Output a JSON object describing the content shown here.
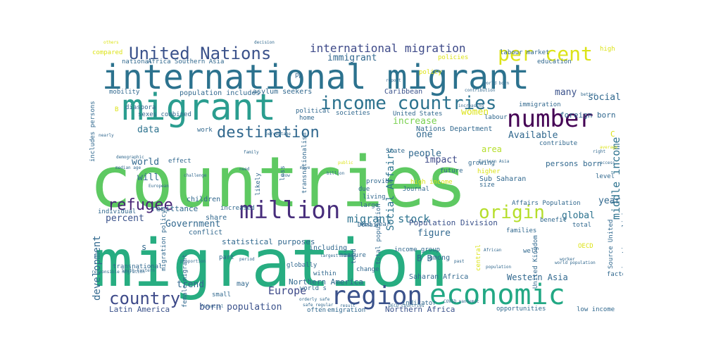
{
  "palette": {
    "dark_purple": "#440154",
    "indigo": "#3b528b",
    "teal": "#21918c",
    "blue_teal": "#2c728e",
    "green": "#5ec962",
    "green_teal": "#27ad81",
    "yellow": "#dce318",
    "light_green": "#7ad151"
  },
  "words": [
    {
      "text": "countries",
      "size": 99,
      "color": "#5ec962",
      "rotate": 0
    },
    {
      "text": "migration",
      "size": 93,
      "color": "#27ad81",
      "rotate": 0
    },
    {
      "text": "international migrant",
      "size": 48,
      "color": "#2c728e",
      "rotate": 0
    },
    {
      "text": "migrant",
      "size": 52,
      "color": "#2a9d8f",
      "rotate": 0
    },
    {
      "text": "economic",
      "size": 40,
      "color": "#22a884",
      "rotate": 0
    },
    {
      "text": "region",
      "size": 36,
      "color": "#3b528b",
      "rotate": 0
    },
    {
      "text": "million",
      "size": 34,
      "color": "#472d7b",
      "rotate": 0
    },
    {
      "text": "number",
      "size": 34,
      "color": "#440154",
      "rotate": 0
    },
    {
      "text": "income countries",
      "size": 26,
      "color": "#2c728e",
      "rotate": 0
    },
    {
      "text": "United Nations",
      "size": 24,
      "color": "#3b528b",
      "rotate": 0
    },
    {
      "text": "per cent",
      "size": 28,
      "color": "#dce318",
      "rotate": 0
    },
    {
      "text": "origin",
      "size": 26,
      "color": "#b5de2b",
      "rotate": 0
    },
    {
      "text": "country",
      "size": 24,
      "color": "#3e4a89",
      "rotate": 0
    },
    {
      "text": "destination",
      "size": 22,
      "color": "#31688e",
      "rotate": 0
    },
    {
      "text": "refugee",
      "size": 22,
      "color": "#482475",
      "rotate": 0
    },
    {
      "text": "international migration",
      "size": 16,
      "color": "#3e4a89",
      "rotate": 0
    },
    {
      "text": "migrant stock",
      "size": 15,
      "color": "#2c728e",
      "rotate": 0
    },
    {
      "text": "Social Affairs",
      "size": 14,
      "color": "#2c728e",
      "rotate": 270
    },
    {
      "text": "middle income",
      "size": 15,
      "color": "#2c728e",
      "rotate": 270
    },
    {
      "text": "Europe",
      "size": 15,
      "color": "#3e4a89",
      "rotate": 0
    },
    {
      "text": "development",
      "size": 14,
      "color": "#31688e",
      "rotate": 270
    },
    {
      "text": "immigrant",
      "size": 13,
      "color": "#31688e",
      "rotate": 0
    },
    {
      "text": "social",
      "size": 13,
      "color": "#31688e",
      "rotate": 0
    },
    {
      "text": "women",
      "size": 13,
      "color": "#dce318",
      "rotate": 0
    },
    {
      "text": "data",
      "size": 13,
      "color": "#2c728e",
      "rotate": 0
    },
    {
      "text": "world",
      "size": 13,
      "color": "#31688e",
      "rotate": 0
    },
    {
      "text": "will",
      "size": 13,
      "color": "#31688e",
      "rotate": 0
    },
    {
      "text": "one",
      "size": 13,
      "color": "#31688e",
      "rotate": 0
    },
    {
      "text": "increase",
      "size": 13,
      "color": "#7ad151",
      "rotate": 0
    },
    {
      "text": "people",
      "size": 13,
      "color": "#31688e",
      "rotate": 0
    },
    {
      "text": "many",
      "size": 13,
      "color": "#3b528b",
      "rotate": 0
    },
    {
      "text": "Available",
      "size": 13,
      "color": "#31688e",
      "rotate": 0
    },
    {
      "text": "impact",
      "size": 13,
      "color": "#3e4a89",
      "rotate": 0
    },
    {
      "text": "area",
      "size": 12,
      "color": "#b5de2b",
      "rotate": 0
    },
    {
      "text": "figure",
      "size": 13,
      "color": "#31688e",
      "rotate": 0
    },
    {
      "text": "year",
      "size": 13,
      "color": "#31688e",
      "rotate": 0
    },
    {
      "text": "global",
      "size": 13,
      "color": "#2c728e",
      "rotate": 0
    },
    {
      "text": "percent",
      "size": 13,
      "color": "#3b528b",
      "rotate": 0
    },
    {
      "text": "Government",
      "size": 13,
      "color": "#31688e",
      "rotate": 0
    },
    {
      "text": "trend",
      "size": 13,
      "color": "#31688e",
      "rotate": 0
    },
    {
      "text": "born population",
      "size": 13,
      "color": "#3b528b",
      "rotate": 0
    },
    {
      "text": "Latin America",
      "size": 11,
      "color": "#3b528b",
      "rotate": 0
    },
    {
      "text": "Northern America",
      "size": 11,
      "color": "#31688e",
      "rotate": 0
    },
    {
      "text": "Western Asia",
      "size": 12,
      "color": "#31688e",
      "rotate": 0
    },
    {
      "text": "Northern Africa",
      "size": 11,
      "color": "#3b528b",
      "rotate": 0
    },
    {
      "text": "Saharan Africa",
      "size": 10,
      "color": "#31688e",
      "rotate": 0
    },
    {
      "text": "statistical purposes",
      "size": 11,
      "color": "#31688e",
      "rotate": 0
    },
    {
      "text": "Population Division",
      "size": 11,
      "color": "#3b528b",
      "rotate": 0
    },
    {
      "text": "Sub Saharan",
      "size": 10,
      "color": "#31688e",
      "rotate": 0
    },
    {
      "text": "persons born",
      "size": 11,
      "color": "#31688e",
      "rotate": 0
    },
    {
      "text": "Nations Department",
      "size": 10,
      "color": "#31688e",
      "rotate": 0
    },
    {
      "text": "asylum seekers",
      "size": 10,
      "color": "#31688e",
      "rotate": 0
    },
    {
      "text": "population includes",
      "size": 10,
      "color": "#31688e",
      "rotate": 0
    },
    {
      "text": "Caribbean",
      "size": 10,
      "color": "#3b528b",
      "rotate": 0
    },
    {
      "text": "foreign born",
      "size": 11,
      "color": "#31688e",
      "rotate": 0
    },
    {
      "text": "Africa Southern Asia",
      "size": 9,
      "color": "#31688e",
      "rotate": 0
    },
    {
      "text": "United States",
      "size": 9,
      "color": "#31688e",
      "rotate": 0
    },
    {
      "text": "diaspora",
      "size": 9,
      "color": "#31688e",
      "rotate": 0
    },
    {
      "text": "sexes combined",
      "size": 9,
      "color": "#31688e",
      "rotate": 0
    },
    {
      "text": "remittance",
      "size": 11,
      "color": "#31688e",
      "rotate": 0
    },
    {
      "text": "children",
      "size": 10,
      "color": "#31688e",
      "rotate": 0
    },
    {
      "text": "share",
      "size": 10,
      "color": "#31688e",
      "rotate": 0
    },
    {
      "text": "conflict",
      "size": 10,
      "color": "#31688e",
      "rotate": 0
    },
    {
      "text": "may",
      "size": 10,
      "color": "#31688e",
      "rotate": 0
    },
    {
      "text": "including",
      "size": 10,
      "color": "#31688e",
      "rotate": 0
    },
    {
      "text": "among",
      "size": 10,
      "color": "#31688e",
      "rotate": 0
    },
    {
      "text": "emigration",
      "size": 9,
      "color": "#31688e",
      "rotate": 0
    },
    {
      "text": "opportunities",
      "size": 9,
      "color": "#31688e",
      "rotate": 0
    },
    {
      "text": "low income",
      "size": 9,
      "color": "#31688e",
      "rotate": 0
    },
    {
      "text": "factor",
      "size": 9,
      "color": "#31688e",
      "rotate": 0
    },
    {
      "text": "total",
      "size": 9,
      "color": "#31688e",
      "rotate": 0
    },
    {
      "text": "well",
      "size": 9,
      "color": "#31688e",
      "rotate": 0
    },
    {
      "text": "families",
      "size": 9,
      "color": "#31688e",
      "rotate": 0
    },
    {
      "text": "benefit",
      "size": 9,
      "color": "#31688e",
      "rotate": 0
    },
    {
      "text": "level",
      "size": 9,
      "color": "#31688e",
      "rotate": 0
    },
    {
      "text": "size",
      "size": 9,
      "color": "#31688e",
      "rotate": 0
    },
    {
      "text": "future",
      "size": 9,
      "color": "#31688e",
      "rotate": 0
    },
    {
      "text": "growing",
      "size": 9,
      "color": "#31688e",
      "rotate": 0
    },
    {
      "text": "higher",
      "size": 9,
      "color": "#dce318",
      "rotate": 0
    },
    {
      "text": "high income",
      "size": 9,
      "color": "#dce318",
      "rotate": 0
    },
    {
      "text": "labour market",
      "size": 9,
      "color": "#31688e",
      "rotate": 0
    },
    {
      "text": "education",
      "size": 9,
      "color": "#31688e",
      "rotate": 0
    },
    {
      "text": "national",
      "size": 9,
      "color": "#31688e",
      "rotate": 0
    },
    {
      "text": "compared",
      "size": 9,
      "color": "#dce318",
      "rotate": 0
    },
    {
      "text": "mobility",
      "size": 9,
      "color": "#31688e",
      "rotate": 0
    },
    {
      "text": "policy",
      "size": 9,
      "color": "#dce318",
      "rotate": 0
    },
    {
      "text": "policies",
      "size": 9,
      "color": "#dce318",
      "rotate": 0
    },
    {
      "text": "high",
      "size": 9,
      "color": "#dce318",
      "rotate": 0
    },
    {
      "text": "immigration",
      "size": 9,
      "color": "#31688e",
      "rotate": 0
    },
    {
      "text": "labour",
      "size": 9,
      "color": "#31688e",
      "rotate": 0
    },
    {
      "text": "contribute",
      "size": 9,
      "color": "#31688e",
      "rotate": 0
    },
    {
      "text": "political",
      "size": 9,
      "color": "#31688e",
      "rotate": 0
    },
    {
      "text": "societies",
      "size": 9,
      "color": "#31688e",
      "rotate": 0
    },
    {
      "text": "home",
      "size": 9,
      "color": "#31688e",
      "rotate": 0
    },
    {
      "text": "State",
      "size": 9,
      "color": "#31688e",
      "rotate": 0
    },
    {
      "text": "work",
      "size": 9,
      "color": "#31688e",
      "rotate": 0
    },
    {
      "text": "likely",
      "size": 9,
      "color": "#31688e",
      "rotate": 270
    },
    {
      "text": "less",
      "size": 9,
      "color": "#31688e",
      "rotate": 270
    },
    {
      "text": "effect",
      "size": 9,
      "color": "#31688e",
      "rotate": 0
    },
    {
      "text": "due",
      "size": 9,
      "color": "#31688e",
      "rotate": 0
    },
    {
      "text": "provide",
      "size": 9,
      "color": "#31688e",
      "rotate": 0
    },
    {
      "text": "living",
      "size": 9,
      "color": "#31688e",
      "rotate": 0
    },
    {
      "text": "Journal",
      "size": 9,
      "color": "#31688e",
      "rotate": 0
    },
    {
      "text": "large",
      "size": 9,
      "color": "#31688e",
      "rotate": 0
    },
    {
      "text": "increased",
      "size": 9,
      "color": "#31688e",
      "rotate": 0
    },
    {
      "text": "individual",
      "size": 9,
      "color": "#31688e",
      "rotate": 0
    },
    {
      "text": "Domain",
      "size": 9,
      "color": "#31688e",
      "rotate": 0
    },
    {
      "text": "part",
      "size": 9,
      "color": "#31688e",
      "rotate": 0
    },
    {
      "text": "measure",
      "size": 9,
      "color": "#31688e",
      "rotate": 0
    },
    {
      "text": "mid year",
      "size": 9,
      "color": "#31688e",
      "rotate": 0
    },
    {
      "text": "income group",
      "size": 9,
      "color": "#31688e",
      "rotate": 0
    },
    {
      "text": "globally",
      "size": 9,
      "color": "#31688e",
      "rotate": 0
    },
    {
      "text": "within",
      "size": 9,
      "color": "#31688e",
      "rotate": 0
    },
    {
      "text": "world s",
      "size": 9,
      "color": "#31688e",
      "rotate": 0
    },
    {
      "text": "often",
      "size": 9,
      "color": "#31688e",
      "rotate": 0
    },
    {
      "text": "indicator",
      "size": 9,
      "color": "#31688e",
      "rotate": 0
    },
    {
      "text": "small",
      "size": 9,
      "color": "#31688e",
      "rotate": 0
    },
    {
      "text": "transnational",
      "size": 9,
      "color": "#31688e",
      "rotate": 0
    },
    {
      "text": "migration policy",
      "size": 9,
      "color": "#31688e",
      "rotate": 270
    },
    {
      "text": "female migrant",
      "size": 9,
      "color": "#31688e",
      "rotate": 270
    },
    {
      "text": "total population",
      "size": 9,
      "color": "#31688e",
      "rotate": 270
    },
    {
      "text": "transnationalism",
      "size": 9,
      "color": "#31688e",
      "rotate": 270
    },
    {
      "text": "includes persons",
      "size": 9,
      "color": "#31688e",
      "rotate": 270
    },
    {
      "text": "Source United",
      "size": 9,
      "color": "#31688e",
      "rotate": 270
    },
    {
      "text": "migration policies",
      "size": 9,
      "color": "#31688e",
      "rotate": 270
    },
    {
      "text": "United Kingdom",
      "size": 9,
      "color": "#31688e",
      "rotate": 270
    },
    {
      "text": "Affairs Population",
      "size": 9,
      "color": "#31688e",
      "rotate": 0
    },
    {
      "text": "OECD",
      "size": 9,
      "color": "#dce318",
      "rotate": 0
    },
    {
      "text": "B B",
      "size": 12,
      "color": "#31688e",
      "rotate": 0
    },
    {
      "text": "s",
      "size": 12,
      "color": "#31688e",
      "rotate": 0
    },
    {
      "text": "B",
      "size": 9,
      "color": "#dce318",
      "rotate": 0
    },
    {
      "text": "C",
      "size": 11,
      "color": "#dce318",
      "rotate": 0
    },
    {
      "text": "tend",
      "size": 9,
      "color": "#31688e",
      "rotate": 270
    },
    {
      "text": "central",
      "size": 9,
      "color": "#dce318",
      "rotate": 270
    },
    {
      "text": "change",
      "size": 9,
      "color": "#31688e",
      "rotate": 0
    },
    {
      "text": "Eastern Asia",
      "size": 6,
      "color": "#31688e",
      "rotate": 0
    },
    {
      "text": "European",
      "size": 6,
      "color": "#31688e",
      "rotate": 0
    },
    {
      "text": "challenge",
      "size": 6,
      "color": "#31688e",
      "rotate": 0
    },
    {
      "text": "demographic",
      "size": 6,
      "color": "#31688e",
      "rotate": 0
    },
    {
      "text": "median age",
      "size": 6,
      "color": "#31688e",
      "rotate": 0
    },
    {
      "text": "nearly",
      "size": 6,
      "color": "#31688e",
      "rotate": 0
    },
    {
      "text": "percentage",
      "size": 6,
      "color": "#31688e",
      "rotate": 0
    },
    {
      "text": "family",
      "size": 6,
      "color": "#31688e",
      "rotate": 0
    },
    {
      "text": "need",
      "size": 6,
      "color": "#31688e",
      "rotate": 0
    },
    {
      "text": "move",
      "size": 6,
      "color": "#31688e",
      "rotate": 0
    },
    {
      "text": "low",
      "size": 6,
      "color": "#31688e",
      "rotate": 0
    },
    {
      "text": "public",
      "size": 6,
      "color": "#dce318",
      "rotate": 0
    },
    {
      "text": "billion",
      "size": 6,
      "color": "#31688e",
      "rotate": 0
    },
    {
      "text": "increasing",
      "size": 6,
      "color": "#31688e",
      "rotate": 0
    },
    {
      "text": "African",
      "size": 6,
      "color": "#31688e",
      "rotate": 0
    },
    {
      "text": "worker",
      "size": 6,
      "color": "#31688e",
      "rotate": 0
    },
    {
      "text": "world population",
      "size": 6,
      "color": "#31688e",
      "rotate": 0
    },
    {
      "text": "right",
      "size": 6,
      "color": "#31688e",
      "rotate": 0
    },
    {
      "text": "average",
      "size": 6,
      "color": "#dce318",
      "rotate": 0
    },
    {
      "text": "access",
      "size": 6,
      "color": "#31688e",
      "rotate": 0
    },
    {
      "text": "decision",
      "size": 6,
      "color": "#31688e",
      "rotate": 0
    },
    {
      "text": "report",
      "size": 6,
      "color": "#31688e",
      "rotate": 0
    },
    {
      "text": "world born",
      "size": 6,
      "color": "#31688e",
      "rotate": 0
    },
    {
      "text": "contribution",
      "size": 6,
      "color": "#31688e",
      "rotate": 0
    },
    {
      "text": "better",
      "size": 6,
      "color": "#31688e",
      "rotate": 0
    },
    {
      "text": "others",
      "size": 6,
      "color": "#dce318",
      "rotate": 0
    },
    {
      "text": "largest number",
      "size": 6,
      "color": "#31688e",
      "rotate": 0
    },
    {
      "text": "orderly safe",
      "size": 6,
      "color": "#31688e",
      "rotate": 0
    },
    {
      "text": "safe regular",
      "size": 6,
      "color": "#31688e",
      "rotate": 0
    },
    {
      "text": "population",
      "size": 6,
      "color": "#31688e",
      "rotate": 0
    },
    {
      "text": "result",
      "size": 6,
      "color": "#31688e",
      "rotate": 0
    },
    {
      "text": "period",
      "size": 6,
      "color": "#31688e",
      "rotate": 0
    },
    {
      "text": "OECD countries",
      "size": 6,
      "color": "#31688e",
      "rotate": 0
    },
    {
      "text": "COVID pandemic",
      "size": 6,
      "color": "#31688e",
      "rotate": 0
    },
    {
      "text": "financial",
      "size": 6,
      "color": "#31688e",
      "rotate": 0
    },
    {
      "text": "responsible migration",
      "size": 6,
      "color": "#31688e",
      "rotate": 0
    },
    {
      "text": "South Eastern",
      "size": 6,
      "color": "#31688e",
      "rotate": 0
    },
    {
      "text": "proportion",
      "size": 6,
      "color": "#31688e",
      "rotate": 0
    },
    {
      "text": "past",
      "size": 6,
      "color": "#31688e",
      "rotate": 0
    },
    {
      "text": "pp",
      "size": 9,
      "color": "#31688e",
      "rotate": 0
    }
  ]
}
